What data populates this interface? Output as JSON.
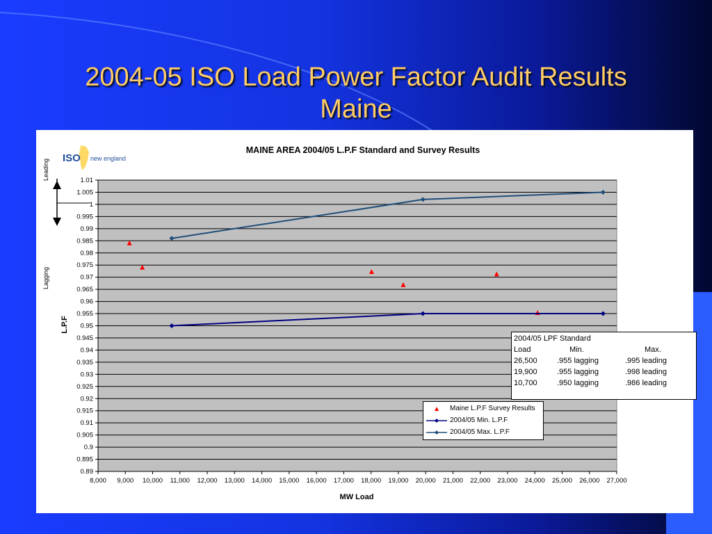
{
  "slide": {
    "title_line1": "2004-05 ISO Load Power Factor Audit Results",
    "title_line2": "Maine",
    "colors": {
      "background": "#1433e0",
      "title": "#ffcc66"
    }
  },
  "logo": {
    "text_iso": "ISO",
    "text_ne": "new england"
  },
  "annotations": {
    "leading": "Leading",
    "lagging": "Lagging"
  },
  "chart_data": {
    "type": "line",
    "title": "MAINE AREA  2004/05 L.P.F Standard and Survey Results",
    "xlabel": "MW Load",
    "ylabel": "L.P.F",
    "xlim": [
      8000,
      27000
    ],
    "ylim": [
      0.89,
      1.01
    ],
    "grid": true,
    "plot_background": "#c0c0c0",
    "x_ticks": [
      8000,
      9000,
      10000,
      11000,
      12000,
      13000,
      14000,
      15000,
      16000,
      17000,
      18000,
      19000,
      20000,
      21000,
      22000,
      23000,
      24000,
      25000,
      26000,
      27000
    ],
    "x_tick_labels": [
      "8,000",
      "9,000",
      "10,000",
      "11,000",
      "12,000",
      "13,000",
      "14,000",
      "15,000",
      "16,000",
      "17,000",
      "18,000",
      "19,000",
      "20,000",
      "21,000",
      "22,000",
      "23,000",
      "24,000",
      "25,000",
      "26,000",
      "27,000"
    ],
    "y_ticks": [
      0.89,
      0.895,
      0.9,
      0.905,
      0.91,
      0.915,
      0.92,
      0.925,
      0.93,
      0.935,
      0.94,
      0.945,
      0.95,
      0.955,
      0.96,
      0.965,
      0.97,
      0.975,
      0.98,
      0.985,
      0.99,
      0.995,
      1.0,
      1.005,
      1.01
    ],
    "y_tick_labels": [
      "0.89",
      "0.895",
      "0.9",
      "0.905",
      "0.91",
      "0.915",
      "0.92",
      "0.925",
      "0.93",
      "0.935",
      "0.94",
      "0.945",
      "0.95",
      "0.955",
      "0.96",
      "0.965",
      "0.97",
      "0.975",
      "0.98",
      "0.985",
      "0.99",
      "0.995",
      "1",
      "1.005",
      "1.01"
    ],
    "series": [
      {
        "name": "Maine  L.P.F Survey Results",
        "type": "scatter",
        "marker": "triangle",
        "color": "#ff0000",
        "x": [
          9150,
          9620,
          18020,
          19180,
          22600,
          24100
        ],
        "y": [
          0.984,
          0.974,
          0.9722,
          0.9668,
          0.9712,
          0.9553
        ]
      },
      {
        "name": "2004/05 Min. L.P.F",
        "type": "line",
        "marker": "diamond",
        "color": "#000080",
        "x": [
          10700,
          19900,
          26500
        ],
        "y": [
          0.95,
          0.955,
          0.955
        ]
      },
      {
        "name": "2004/05 Max. L.P.F",
        "type": "line",
        "marker": "diamond",
        "color": "#1f4e79",
        "x": [
          10700,
          19900,
          26500
        ],
        "y": [
          0.986,
          1.002,
          1.005
        ]
      }
    ],
    "legend_position": "bottom-right",
    "standard_table": {
      "title": "2004/05 LPF Standard",
      "headers": [
        "Load",
        "Min.",
        "Max."
      ],
      "rows": [
        [
          "26,500",
          ".955 lagging",
          ".995 leading"
        ],
        [
          "19,900",
          ".955 lagging",
          ".998 leading"
        ],
        [
          "10,700",
          ".950 lagging",
          ".986 leading"
        ]
      ]
    }
  }
}
